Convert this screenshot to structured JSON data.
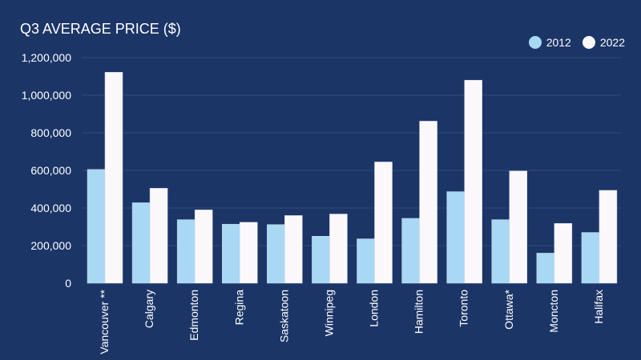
{
  "chart_data": {
    "type": "bar",
    "title": "Q3 AVERAGE PRICE ($)",
    "xlabel": "",
    "ylabel": "",
    "ylim": [
      0,
      1200000
    ],
    "yticks": [
      0,
      200000,
      400000,
      600000,
      800000,
      1000000,
      1200000
    ],
    "ytick_labels": [
      "0",
      "200,000",
      "400,000",
      "600,000",
      "800,000",
      "1,000,000",
      "1,200,000"
    ],
    "grid": true,
    "legend_position": "top-right",
    "categories": [
      "Vancouver **",
      "Calgary",
      "Edmonton",
      "Regina",
      "Saskatoon",
      "Winnipeg",
      "London",
      "Hamilton",
      "Toronto",
      "Ottawa*",
      "Moncton",
      "Halifax"
    ],
    "series": [
      {
        "name": "2012",
        "color": "#a8d8f4",
        "values": [
          605000,
          428000,
          338000,
          314000,
          312000,
          250000,
          236000,
          345000,
          487000,
          338000,
          160000,
          270000
        ]
      },
      {
        "name": "2022",
        "color": "#fbf8fc",
        "values": [
          1122000,
          505000,
          390000,
          324000,
          360000,
          368000,
          645000,
          862000,
          1080000,
          597000,
          318000,
          494000
        ]
      }
    ]
  },
  "colors": {
    "background": "#1c3567",
    "gridline": "#2e4a7e"
  }
}
